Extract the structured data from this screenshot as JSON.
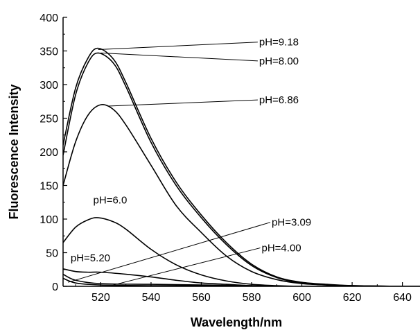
{
  "chart_data": {
    "type": "line",
    "title": "",
    "xlabel": "Wavelength/nm",
    "ylabel": "Fluorescence Intensity",
    "xlim": [
      505,
      647
    ],
    "ylim": [
      0,
      400
    ],
    "xticks": [
      520,
      540,
      560,
      580,
      600,
      620,
      640
    ],
    "yticks": [
      0,
      50,
      100,
      150,
      200,
      250,
      300,
      350,
      400
    ],
    "grid": false,
    "legend": "none",
    "series": [
      {
        "name": "pH=9.18",
        "x": [
          505,
          510,
          515,
          519,
          525,
          530,
          540,
          550,
          560,
          570,
          580,
          590,
          600,
          610,
          620,
          640,
          647
        ],
        "y": [
          210,
          295,
          340,
          354,
          338,
          303,
          220,
          155,
          106,
          65,
          33,
          14,
          6,
          3,
          1,
          0,
          0
        ]
      },
      {
        "name": "pH=8.00",
        "x": [
          505,
          510,
          515,
          519,
          525,
          530,
          540,
          550,
          560,
          570,
          580,
          590,
          600,
          610,
          620,
          640,
          647
        ],
        "y": [
          195,
          285,
          333,
          347,
          332,
          297,
          214,
          150,
          102,
          62,
          31,
          13,
          5,
          2,
          1,
          0,
          0
        ]
      },
      {
        "name": "pH=6.86",
        "x": [
          505,
          510,
          515,
          520,
          525,
          530,
          540,
          550,
          560,
          570,
          580,
          590,
          600,
          610,
          620,
          640,
          647
        ],
        "y": [
          150,
          215,
          255,
          270,
          263,
          240,
          180,
          120,
          80,
          45,
          22,
          10,
          4,
          2,
          1,
          0,
          0
        ]
      },
      {
        "name": "pH=6.0",
        "x": [
          505,
          510,
          515,
          519,
          525,
          530,
          540,
          550,
          560,
          570,
          580,
          590,
          600,
          610,
          620,
          640,
          647
        ],
        "y": [
          65,
          88,
          99,
          102,
          96,
          85,
          55,
          32,
          17,
          8,
          3,
          1,
          0,
          0,
          0,
          0,
          0
        ]
      },
      {
        "name": "pH=5.20",
        "x": [
          505,
          510,
          515,
          520,
          530,
          540,
          550,
          560,
          570,
          580,
          590,
          600,
          620,
          647
        ],
        "y": [
          26,
          22,
          21,
          21,
          18,
          14,
          9,
          5,
          3,
          1,
          0,
          0,
          0,
          0
        ]
      },
      {
        "name": "pH=4.00",
        "x": [
          505,
          510,
          520,
          540,
          560,
          580,
          600,
          647
        ],
        "y": [
          18,
          9,
          4,
          3,
          2,
          1,
          0,
          0
        ]
      },
      {
        "name": "pH=3.09",
        "x": [
          505,
          510,
          520,
          540,
          560,
          580,
          600,
          647
        ],
        "y": [
          12,
          5,
          2,
          1,
          1,
          0,
          0,
          0
        ]
      }
    ],
    "annotations": [
      {
        "text": "pH=9.18",
        "series": "pH=9.18",
        "point_x": 519,
        "point_y": 352,
        "label_x": 583,
        "label_y": 358
      },
      {
        "text": "pH=8.00",
        "series": "pH=8.00",
        "point_x": 520,
        "point_y": 347,
        "label_x": 583,
        "label_y": 330
      },
      {
        "text": "pH=6.86",
        "series": "pH=6.86",
        "point_x": 523,
        "point_y": 268,
        "label_x": 583,
        "label_y": 272
      },
      {
        "text": "pH=6.0",
        "series": "pH=6.0",
        "point_x": 518,
        "point_y": 102,
        "label_x": 517,
        "label_y": 123
      },
      {
        "text": "pH=3.09",
        "series": "pH=3.09",
        "point_x": 507,
        "point_y": 6,
        "label_x": 588,
        "label_y": 90
      },
      {
        "text": "pH=4.00",
        "series": "pH=4.00",
        "point_x": 525,
        "point_y": 2,
        "label_x": 584,
        "label_y": 52
      },
      {
        "text": "pH=5.20",
        "series": "pH=5.20",
        "point_x": 520,
        "point_y": 22,
        "label_x": 508,
        "label_y": 37
      }
    ]
  }
}
